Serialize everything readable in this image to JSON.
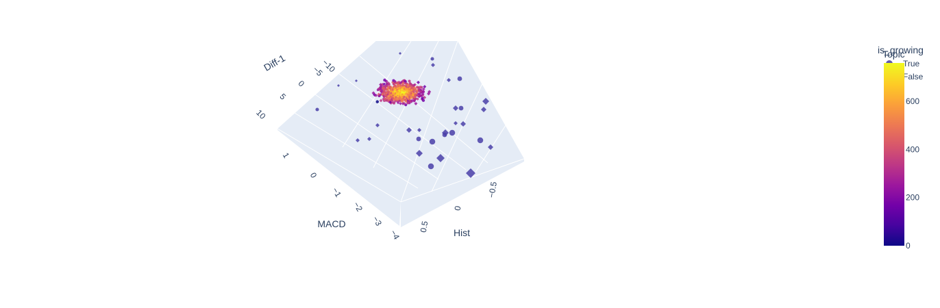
{
  "chart_data": {
    "type": "scatter",
    "title": "",
    "axes": {
      "x": {
        "label": "Hist",
        "ticks": [
          "0.5",
          "0",
          "−0.5"
        ]
      },
      "y": {
        "label": "Diff-1",
        "ticks": [
          "10",
          "5",
          "0",
          "−5",
          "−10"
        ]
      },
      "z": {
        "label": "MACD",
        "ticks": [
          "1",
          "0",
          "−1",
          "−2",
          "−3",
          "−4"
        ]
      }
    },
    "legend": {
      "title": "is_growing",
      "title_overlap": "Topic",
      "placement": "top-right",
      "entries": [
        {
          "name": "True",
          "symbol": "circle"
        },
        {
          "name": "False",
          "symbol": "diamond"
        }
      ]
    },
    "colorbar": {
      "title": "Topic",
      "range": [
        0,
        760
      ],
      "ticks": [
        "0",
        "200",
        "400",
        "600"
      ],
      "colorscale": [
        "#0d0887",
        "#46039f",
        "#7201a8",
        "#9c179e",
        "#bd3786",
        "#d8576b",
        "#ed7953",
        "#fb9f3a",
        "#fdca26",
        "#f0f921"
      ]
    },
    "grid": true
  }
}
